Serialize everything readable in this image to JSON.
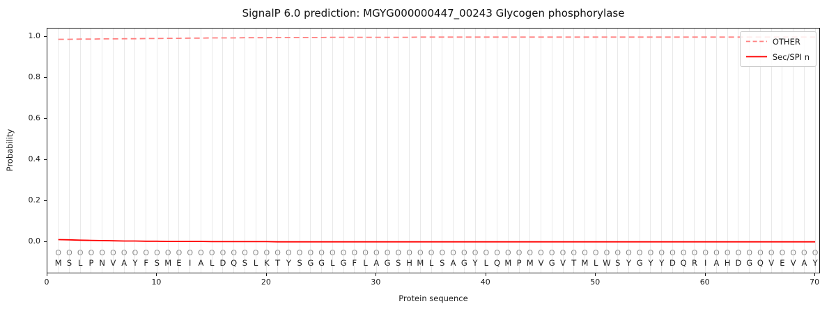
{
  "title": "SignalP 6.0 prediction: MGYG000000447_00243 Glycogen phosphorylase",
  "axes": {
    "ylabel": "Probability",
    "xlabel": "Protein sequence",
    "ytick_labels": [
      "0.0",
      "0.2",
      "0.4",
      "0.6",
      "0.8",
      "1.0"
    ],
    "ytick_values": [
      0.0,
      0.2,
      0.4,
      0.6,
      0.8,
      1.0
    ],
    "xtick_labels": [
      "0",
      "10",
      "20",
      "30",
      "40",
      "50",
      "60",
      "70"
    ],
    "xtick_values": [
      0,
      10,
      20,
      30,
      40,
      50,
      60,
      70
    ]
  },
  "legend": {
    "position": "upper right",
    "items": [
      {
        "label": "OTHER",
        "style": "dashed",
        "color": "#ff7f7f"
      },
      {
        "label": "Sec/SPI n",
        "style": "solid",
        "color": "#ff0000"
      }
    ]
  },
  "colors": {
    "other_line": "#ff7f7f",
    "spi_line": "#ff0000",
    "grid": "#e9e9e9",
    "spine": "#1a1a1a",
    "sequence_text": "#1f1f1f",
    "predicted_label_text": "#8a8a8a"
  },
  "chart_data": {
    "type": "line",
    "title": "SignalP 6.0 prediction: MGYG000000447_00243 Glycogen phosphorylase",
    "xlabel": "Protein sequence",
    "ylabel": "Probability",
    "xlim": [
      0,
      70.5
    ],
    "ylim": [
      -0.156,
      1.047
    ],
    "grid": "vertical-per-residue",
    "legend_position": "upper right",
    "x": [
      1,
      2,
      3,
      4,
      5,
      6,
      7,
      8,
      9,
      10,
      11,
      12,
      13,
      14,
      15,
      16,
      17,
      18,
      19,
      20,
      21,
      22,
      23,
      24,
      25,
      26,
      27,
      28,
      29,
      30,
      31,
      32,
      33,
      34,
      35,
      36,
      37,
      38,
      39,
      40,
      41,
      42,
      43,
      44,
      45,
      46,
      47,
      48,
      49,
      50,
      51,
      52,
      53,
      54,
      55,
      56,
      57,
      58,
      59,
      60,
      61,
      62,
      63,
      64,
      65,
      66,
      67,
      68,
      69,
      70
    ],
    "sequence": "MSLPNVAYFSMEIALDQSLKTYSGGLGFLAGSHMLSAGYLQMPMVGVTMLWSYGYYDQRIAHDGQVEVAY",
    "predicted_labels": "OOOOOOOOOOOOOOOOOOOOOOOOOOOOOOOOOOOOOOOOOOOOOOOOOOOOOOOOOOOOOOOOOOOOOO",
    "series": [
      {
        "name": "OTHER",
        "style": "dashed",
        "color": "#ff7f7f",
        "values": [
          0.988,
          0.988,
          0.989,
          0.989,
          0.99,
          0.99,
          0.991,
          0.991,
          0.992,
          0.992,
          0.993,
          0.993,
          0.994,
          0.994,
          0.995,
          0.995,
          0.995,
          0.996,
          0.996,
          0.996,
          0.997,
          0.997,
          0.997,
          0.997,
          0.997,
          0.998,
          0.998,
          0.998,
          0.998,
          0.998,
          0.998,
          0.998,
          0.998,
          0.999,
          0.999,
          0.999,
          0.999,
          0.999,
          0.999,
          0.999,
          0.999,
          0.999,
          0.999,
          0.999,
          0.999,
          0.999,
          0.999,
          0.999,
          0.999,
          0.999,
          0.999,
          0.999,
          0.999,
          0.999,
          0.999,
          0.999,
          0.999,
          0.999,
          0.999,
          0.999,
          0.999,
          0.999,
          0.999,
          0.999,
          0.999,
          0.999,
          0.999,
          0.999,
          0.999,
          0.999
        ]
      },
      {
        "name": "Sec/SPI n",
        "style": "solid",
        "color": "#ff0000",
        "values": [
          0.012,
          0.011,
          0.009,
          0.008,
          0.007,
          0.006,
          0.005,
          0.005,
          0.004,
          0.004,
          0.003,
          0.003,
          0.003,
          0.003,
          0.002,
          0.002,
          0.002,
          0.002,
          0.002,
          0.002,
          0.001,
          0.001,
          0.001,
          0.001,
          0.001,
          0.001,
          0.001,
          0.001,
          0.001,
          0.001,
          0.001,
          0.001,
          0.001,
          0.001,
          0.001,
          0.001,
          0.001,
          0.001,
          0.001,
          0.001,
          0.001,
          0.001,
          0.001,
          0.001,
          0.001,
          0.001,
          0.001,
          0.001,
          0.001,
          0.001,
          0.001,
          0.001,
          0.001,
          0.001,
          0.001,
          0.001,
          0.001,
          0.001,
          0.001,
          0.001,
          0.001,
          0.001,
          0.001,
          0.001,
          0.001,
          0.001,
          0.001,
          0.001,
          0.001,
          0.001
        ]
      }
    ]
  }
}
